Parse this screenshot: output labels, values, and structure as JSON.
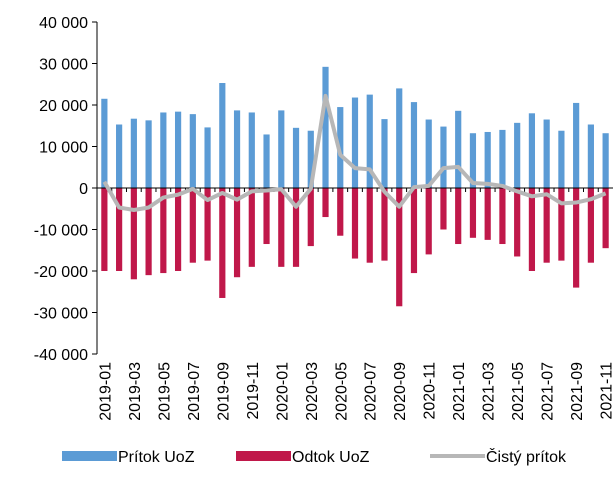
{
  "chart_data": {
    "type": "bar-line",
    "categories": [
      "2019-01",
      null,
      "2019-03",
      null,
      "2019-05",
      null,
      "2019-07",
      null,
      "2019-09",
      null,
      "2019-11",
      null,
      "2020-01",
      null,
      "2020-03",
      null,
      "2020-05",
      null,
      "2020-07",
      null,
      "2020-09",
      null,
      "2020-11",
      null,
      "2021-01",
      null,
      "2021-03",
      null,
      "2021-05",
      null,
      "2021-07",
      null,
      "2021-09",
      null,
      "2021-11"
    ],
    "series": [
      {
        "name": "Prítok UoZ",
        "color": "#5b9bd5",
        "kind": "bar",
        "values": [
          21500,
          15300,
          16700,
          16300,
          18200,
          18400,
          17800,
          14600,
          25300,
          18700,
          18200,
          12900,
          18700,
          14500,
          13800,
          29200,
          19500,
          21800,
          22500,
          16600,
          24000,
          20700,
          16500,
          14800,
          18600,
          13200,
          13500,
          14000,
          15700,
          18000,
          16500,
          13800,
          20500,
          15300,
          13200
        ]
      },
      {
        "name": "Odtok UoZ",
        "color": "#c0184a",
        "kind": "bar",
        "values": [
          -20000,
          -20000,
          -22000,
          -21000,
          -20500,
          -20000,
          -18000,
          -17500,
          -26500,
          -21500,
          -19000,
          -13500,
          -19000,
          -19000,
          -14000,
          -7000,
          -11500,
          -17000,
          -18000,
          -17500,
          -28500,
          -20500,
          -16000,
          -10000,
          -13500,
          -12000,
          -12500,
          -13500,
          -16500,
          -20000,
          -18000,
          -17500,
          -24000,
          -18000,
          -14500
        ]
      },
      {
        "name": "Čistý prítok",
        "color": "#b7b7b7",
        "kind": "line",
        "values": [
          1500,
          -4700,
          -5300,
          -4700,
          -2300,
          -1600,
          -200,
          -2900,
          -1200,
          -2800,
          -800,
          -600,
          -300,
          -4500,
          -200,
          22200,
          8000,
          4800,
          4500,
          -900,
          -4500,
          200,
          500,
          4800,
          5100,
          1200,
          1000,
          500,
          -800,
          -2000,
          -1500,
          -3700,
          -3500,
          -2700,
          -1300
        ]
      }
    ],
    "ylim": [
      -40000,
      40000
    ],
    "yticks": [
      {
        "value": -40000,
        "label": "-40 000"
      },
      {
        "value": -30000,
        "label": "-30 000"
      },
      {
        "value": -20000,
        "label": "-20 000"
      },
      {
        "value": -10000,
        "label": "-10 000"
      },
      0,
      {
        "value": 10000,
        "label": "10 000"
      },
      {
        "value": 20000,
        "label": "20 000"
      },
      {
        "value": 30000,
        "label": "30 000"
      },
      {
        "value": 40000,
        "label": "40 000"
      }
    ]
  }
}
